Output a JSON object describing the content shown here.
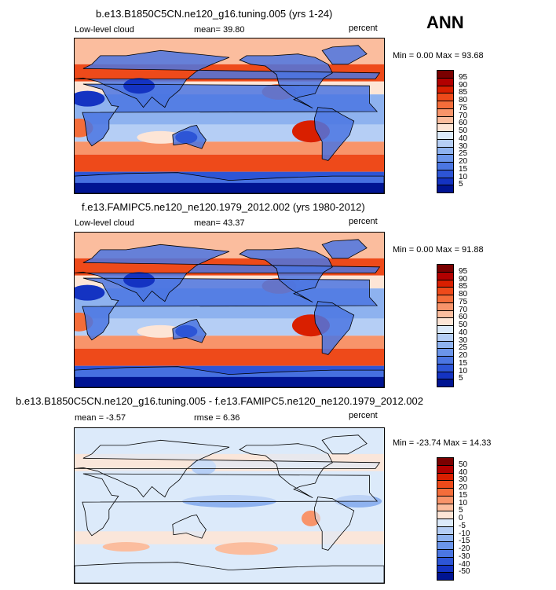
{
  "season": "ANN",
  "panels": [
    {
      "title": "b.e13.B1850C5CN.ne120_g16.tuning.005 (yrs 1-24)",
      "left_label": "Low-level cloud",
      "mid_label": "mean=  39.80",
      "right_label": "percent",
      "minmax": "Min =   0.00 Max =  93.68",
      "colorbar": {
        "labels": [
          "95",
          "90",
          "85",
          "80",
          "75",
          "70",
          "60",
          "50",
          "40",
          "30",
          "25",
          "20",
          "15",
          "10",
          "5"
        ],
        "colors": [
          "#7a0000",
          "#b20000",
          "#d91f00",
          "#ee4a1a",
          "#f46d3a",
          "#f8946a",
          "#fbbd9e",
          "#fde5d6",
          "#dceafa",
          "#b5cef5",
          "#8eb2ef",
          "#6b95ea",
          "#4b76e2",
          "#2d55d6",
          "#1433c2",
          "#001492"
        ]
      }
    },
    {
      "title": "f.e13.FAMIPC5.ne120_ne120.1979_2012.002 (yrs 1980-2012)",
      "left_label": "Low-level cloud",
      "mid_label": "mean=  43.37",
      "right_label": "percent",
      "minmax": "Min =   0.00 Max =  91.88",
      "colorbar": {
        "labels": [
          "95",
          "90",
          "85",
          "80",
          "75",
          "70",
          "60",
          "50",
          "40",
          "30",
          "25",
          "20",
          "15",
          "10",
          "5"
        ],
        "colors": [
          "#7a0000",
          "#b20000",
          "#d91f00",
          "#ee4a1a",
          "#f46d3a",
          "#f8946a",
          "#fbbd9e",
          "#fde5d6",
          "#dceafa",
          "#b5cef5",
          "#8eb2ef",
          "#6b95ea",
          "#4b76e2",
          "#2d55d6",
          "#1433c2",
          "#001492"
        ]
      }
    },
    {
      "title": "b.e13.B1850C5CN.ne120_g16.tuning.005 - f.e13.FAMIPC5.ne120_ne120.1979_2012.002",
      "left_label": "mean =  -3.57",
      "mid_label": "rmse =   6.36",
      "right_label": "percent",
      "minmax": "Min = -23.74 Max =  14.33",
      "colorbar": {
        "labels": [
          "50",
          "40",
          "30",
          "20",
          "15",
          "10",
          "5",
          "0",
          "-5",
          "-10",
          "-15",
          "-20",
          "-30",
          "-40",
          "-50"
        ],
        "colors": [
          "#7a0000",
          "#b20000",
          "#d91f00",
          "#ee4a1a",
          "#f46d3a",
          "#f8946a",
          "#fbbd9e",
          "#fde5d6",
          "#dceafa",
          "#b5cef5",
          "#8eb2ef",
          "#6b95ea",
          "#4b76e2",
          "#2d55d6",
          "#1433c2",
          "#001492"
        ]
      }
    }
  ]
}
